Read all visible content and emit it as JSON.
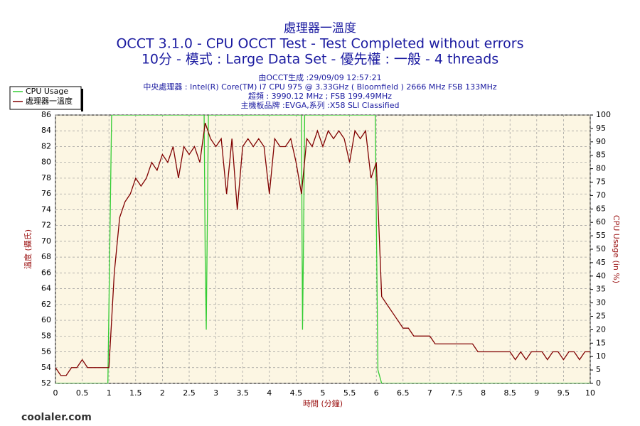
{
  "chart_data": {
    "type": "line",
    "title": [
      "處理器一溫度",
      "OCCT 3.1.0 - CPU OCCT Test - Test Completed without errors",
      "10分 - 模式 : Large Data Set - 優先權 : 一般 - 4 threads"
    ],
    "subtitle": [
      "由OCCT生成 :29/09/09 12:57:21",
      "中央處理器 : Intel(R) Core(TM) i7 CPU 975 @ 3.33GHz ( Bloomfield ) 2666 MHz FSB 133MHz",
      "超頻 : 3990.12 MHz ; FSB 199.49MHz",
      "主機板品牌 :EVGA,系列 :X58 SLI Classified"
    ],
    "xlabel": "時間 (分鐘)",
    "ylabel": "溫度 (攝氏)",
    "y2label": "CPU Usage (in %)",
    "watermark": "coolaler.com",
    "xlim": [
      0,
      10
    ],
    "xticks": [
      0,
      0.5,
      1,
      1.5,
      2,
      2.5,
      3,
      3.5,
      4,
      4.5,
      5,
      5.5,
      6,
      6.5,
      7,
      7.5,
      8,
      8.5,
      9,
      9.5,
      10
    ],
    "ylim": [
      52,
      86
    ],
    "yticks": [
      52,
      54,
      56,
      58,
      60,
      62,
      64,
      66,
      68,
      70,
      72,
      74,
      76,
      78,
      80,
      82,
      84,
      86
    ],
    "y2lim": [
      0,
      100
    ],
    "y2ticks": [
      0,
      5,
      10,
      15,
      20,
      25,
      30,
      35,
      40,
      45,
      50,
      55,
      60,
      65,
      70,
      75,
      80,
      85,
      90,
      95,
      100
    ],
    "grid": true,
    "legend": "top-left",
    "series": [
      {
        "name": "CPU Usage",
        "color": "#33cc33",
        "axis": "y2",
        "x": [
          0,
          0.98,
          1.05,
          2.78,
          2.8,
          2.82,
          2.84,
          2.86,
          4.6,
          4.62,
          4.64,
          4.66,
          5.98,
          6.03,
          6.1,
          10
        ],
        "values": [
          0,
          0,
          100,
          100,
          47,
          20,
          60,
          100,
          100,
          20,
          55,
          100,
          100,
          5,
          0,
          0
        ]
      },
      {
        "name": "處理器一溫度",
        "color": "#800000",
        "x": [
          0,
          0.1,
          0.2,
          0.3,
          0.4,
          0.5,
          0.6,
          0.7,
          0.8,
          0.9,
          1,
          1.1,
          1.2,
          1.3,
          1.4,
          1.5,
          1.6,
          1.7,
          1.8,
          1.9,
          2,
          2.1,
          2.2,
          2.3,
          2.4,
          2.5,
          2.6,
          2.7,
          2.8,
          2.9,
          3,
          3.1,
          3.2,
          3.3,
          3.4,
          3.5,
          3.6,
          3.7,
          3.8,
          3.9,
          4,
          4.1,
          4.2,
          4.3,
          4.4,
          4.5,
          4.6,
          4.7,
          4.8,
          4.9,
          5,
          5.1,
          5.2,
          5.3,
          5.4,
          5.5,
          5.6,
          5.7,
          5.8,
          5.9,
          6,
          6.1,
          6.2,
          6.3,
          6.4,
          6.5,
          6.6,
          6.7,
          6.8,
          6.9,
          7,
          7.1,
          7.2,
          7.3,
          7.4,
          7.5,
          7.6,
          7.7,
          7.8,
          7.9,
          8,
          8.1,
          8.2,
          8.3,
          8.4,
          8.5,
          8.6,
          8.7,
          8.8,
          8.9,
          9,
          9.1,
          9.2,
          9.3,
          9.4,
          9.5,
          9.6,
          9.7,
          9.8,
          9.9,
          10
        ],
        "values": [
          54,
          53,
          53,
          54,
          54,
          55,
          54,
          54,
          54,
          54,
          54,
          66,
          73,
          75,
          76,
          78,
          77,
          78,
          80,
          79,
          81,
          80,
          82,
          78,
          82,
          81,
          82,
          80,
          85,
          83,
          82,
          83,
          76,
          83,
          74,
          82,
          83,
          82,
          83,
          82,
          76,
          83,
          82,
          82,
          83,
          80,
          76,
          83,
          82,
          84,
          82,
          84,
          83,
          84,
          83,
          80,
          84,
          83,
          84,
          78,
          80,
          63,
          62,
          61,
          60,
          59,
          59,
          58,
          58,
          58,
          58,
          57,
          57,
          57,
          57,
          57,
          57,
          57,
          57,
          56,
          56,
          56,
          56,
          56,
          56,
          56,
          55,
          56,
          55,
          56,
          56,
          56,
          55,
          56,
          56,
          55,
          56,
          56,
          55,
          56,
          56
        ]
      }
    ]
  }
}
